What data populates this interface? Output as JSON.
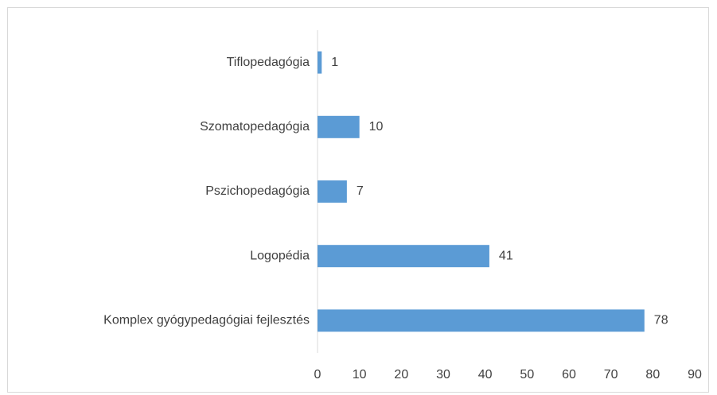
{
  "chart_data": {
    "type": "bar",
    "orientation": "horizontal",
    "categories": [
      "Tiflopedagógia",
      "Szomatopedagógia",
      "Pszichopedagógia",
      "Logopédia",
      "Komplex gyógypedagógiai fejlesztés"
    ],
    "values": [
      1,
      10,
      7,
      41,
      78
    ],
    "color": "#5b9bd5",
    "xlim": [
      0,
      90
    ],
    "xticks": [
      0,
      10,
      20,
      30,
      40,
      50,
      60,
      70,
      80,
      90
    ],
    "grid": false
  }
}
